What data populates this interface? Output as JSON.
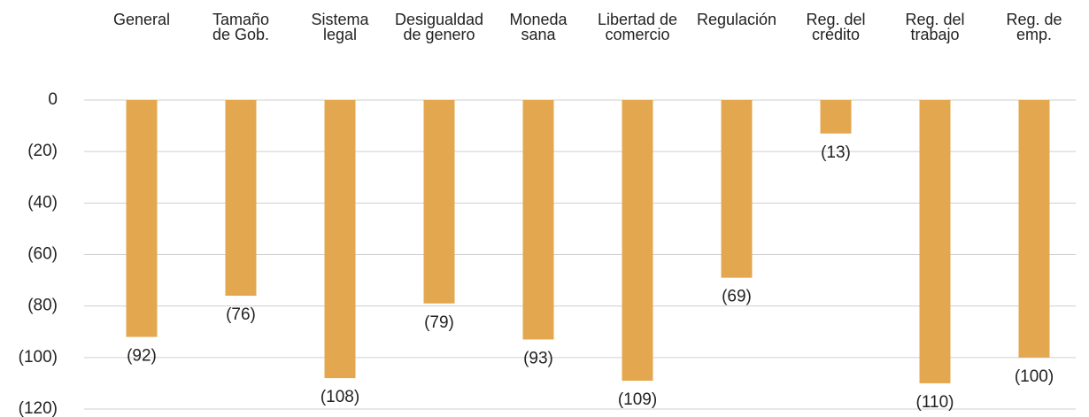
{
  "chart_data": {
    "type": "bar",
    "categories": [
      "General",
      "Tamaño\nde Gob.",
      "Sistema\nlegal",
      "Desigualdad\nde genero",
      "Moneda\nsana",
      "Libertad de\ncomercio",
      "Regulación",
      "Reg. del\ncrédito",
      "Reg. del\ntrabajo",
      "Reg. de\nemp."
    ],
    "values": [
      -92,
      -76,
      -108,
      -79,
      -93,
      -109,
      -69,
      -13,
      -110,
      -100
    ],
    "value_labels": [
      "(92)",
      "(76)",
      "(108)",
      "(79)",
      "(93)",
      "(109)",
      "(69)",
      "(13)",
      "(110)",
      "(100)"
    ],
    "color": "#e3a84f",
    "ylim": [
      -120,
      0
    ],
    "yticks": [
      0,
      {
        "value": -20,
        "label": "(20)"
      },
      {
        "value": -40,
        "label": "(40)"
      },
      {
        "value": -60,
        "label": "(60)"
      },
      {
        "value": -80,
        "label": "(80)"
      },
      {
        "value": -100,
        "label": "(100)"
      },
      {
        "value": -120,
        "label": "(120)"
      }
    ],
    "grid": true
  }
}
